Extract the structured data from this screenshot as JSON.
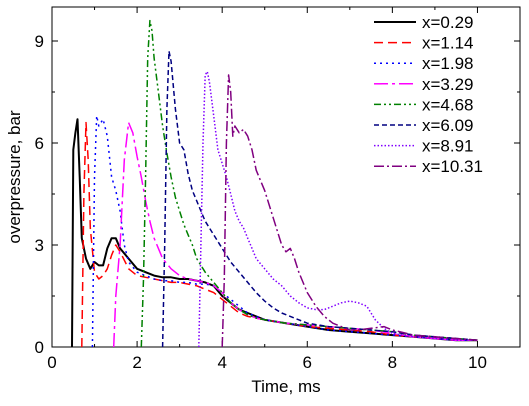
{
  "chart_data": {
    "type": "line",
    "xlabel": "Time, ms",
    "ylabel": "overpressure, bar",
    "xlim": [
      0,
      11
    ],
    "ylim": [
      0,
      10
    ],
    "x_ticks": [
      0,
      2,
      4,
      6,
      8,
      10
    ],
    "y_ticks": [
      0,
      3,
      6,
      9
    ],
    "grid": false,
    "legend_position": "top-right",
    "series": [
      {
        "name": "x=0.29",
        "color": "#000000",
        "dash": "",
        "points": [
          [
            0.47,
            0
          ],
          [
            0.5,
            5.8
          ],
          [
            0.55,
            6.3
          ],
          [
            0.6,
            6.7
          ],
          [
            0.65,
            5.0
          ],
          [
            0.7,
            3.2
          ],
          [
            0.8,
            2.6
          ],
          [
            0.9,
            2.3
          ],
          [
            1.0,
            2.5
          ],
          [
            1.1,
            2.4
          ],
          [
            1.2,
            2.4
          ],
          [
            1.3,
            2.9
          ],
          [
            1.4,
            3.2
          ],
          [
            1.5,
            3.2
          ],
          [
            1.6,
            2.9
          ],
          [
            1.8,
            2.6
          ],
          [
            2.0,
            2.3
          ],
          [
            2.2,
            2.2
          ],
          [
            2.4,
            2.1
          ],
          [
            2.6,
            2.05
          ],
          [
            2.8,
            2.05
          ],
          [
            3.0,
            2.0
          ],
          [
            3.2,
            2.0
          ],
          [
            3.4,
            1.95
          ],
          [
            3.6,
            1.9
          ],
          [
            3.8,
            1.8
          ],
          [
            4.0,
            1.5
          ],
          [
            4.2,
            1.3
          ],
          [
            4.4,
            1.1
          ],
          [
            4.6,
            1.0
          ],
          [
            4.8,
            0.9
          ],
          [
            5.0,
            0.8
          ],
          [
            5.5,
            0.7
          ],
          [
            6.0,
            0.6
          ],
          [
            6.5,
            0.5
          ],
          [
            7.0,
            0.45
          ],
          [
            7.5,
            0.4
          ],
          [
            8.0,
            0.35
          ],
          [
            8.5,
            0.3
          ],
          [
            9.0,
            0.25
          ],
          [
            9.5,
            0.2
          ],
          [
            10.0,
            0.2
          ]
        ]
      },
      {
        "name": "x=1.14",
        "color": "#ff0000",
        "dash": "9,5",
        "points": [
          [
            0.7,
            0
          ],
          [
            0.75,
            4.5
          ],
          [
            0.8,
            6.6
          ],
          [
            0.85,
            5.5
          ],
          [
            0.9,
            3.5
          ],
          [
            1.0,
            2.2
          ],
          [
            1.1,
            2.0
          ],
          [
            1.2,
            2.1
          ],
          [
            1.3,
            2.3
          ],
          [
            1.4,
            2.7
          ],
          [
            1.5,
            3.0
          ],
          [
            1.6,
            2.8
          ],
          [
            1.8,
            2.3
          ],
          [
            2.0,
            2.1
          ],
          [
            2.2,
            2.05
          ],
          [
            2.4,
            2.0
          ],
          [
            2.6,
            1.95
          ],
          [
            2.8,
            1.9
          ],
          [
            3.0,
            1.9
          ],
          [
            3.2,
            1.85
          ],
          [
            3.4,
            1.8
          ],
          [
            3.6,
            1.7
          ],
          [
            3.8,
            1.6
          ],
          [
            4.0,
            1.4
          ],
          [
            4.2,
            1.2
          ],
          [
            4.4,
            1.0
          ],
          [
            4.6,
            0.9
          ],
          [
            4.8,
            0.85
          ],
          [
            5.0,
            0.8
          ],
          [
            5.5,
            0.7
          ],
          [
            6.0,
            0.6
          ],
          [
            6.5,
            0.55
          ],
          [
            7.0,
            0.5
          ],
          [
            7.5,
            0.45
          ],
          [
            8.0,
            0.35
          ],
          [
            8.5,
            0.3
          ],
          [
            9.0,
            0.25
          ],
          [
            9.5,
            0.2
          ],
          [
            10.0,
            0.2
          ]
        ]
      },
      {
        "name": "x=1.98",
        "color": "#0000ff",
        "dash": "2,4",
        "points": [
          [
            0.95,
            0
          ],
          [
            1.0,
            5.0
          ],
          [
            1.05,
            6.8
          ],
          [
            1.1,
            6.5
          ],
          [
            1.2,
            6.7
          ],
          [
            1.3,
            6.2
          ],
          [
            1.4,
            5.0
          ],
          [
            1.5,
            4.6
          ],
          [
            1.6,
            4.0
          ],
          [
            1.7,
            3.0
          ],
          [
            1.8,
            2.5
          ],
          [
            2.0,
            2.2
          ],
          [
            2.2,
            2.1
          ],
          [
            2.4,
            2.0
          ],
          [
            2.6,
            1.95
          ],
          [
            2.8,
            1.95
          ],
          [
            3.0,
            1.9
          ],
          [
            3.2,
            1.9
          ],
          [
            3.4,
            1.85
          ],
          [
            3.6,
            1.85
          ],
          [
            3.8,
            1.8
          ],
          [
            4.0,
            1.6
          ],
          [
            4.2,
            1.4
          ],
          [
            4.4,
            1.2
          ],
          [
            4.6,
            1.0
          ],
          [
            4.8,
            0.9
          ],
          [
            5.0,
            0.8
          ],
          [
            5.5,
            0.7
          ],
          [
            6.0,
            0.6
          ],
          [
            6.5,
            0.5
          ],
          [
            7.0,
            0.45
          ],
          [
            7.5,
            0.4
          ],
          [
            8.0,
            0.35
          ],
          [
            8.5,
            0.3
          ],
          [
            9.0,
            0.25
          ],
          [
            9.5,
            0.2
          ],
          [
            10.0,
            0.2
          ]
        ]
      },
      {
        "name": "x=3.29",
        "color": "#ff00ff",
        "dash": "14,4,3,4",
        "points": [
          [
            1.45,
            0
          ],
          [
            1.5,
            1.5
          ],
          [
            1.6,
            3.0
          ],
          [
            1.7,
            5.5
          ],
          [
            1.8,
            6.6
          ],
          [
            1.9,
            6.3
          ],
          [
            2.0,
            5.6
          ],
          [
            2.1,
            5.0
          ],
          [
            2.2,
            4.3
          ],
          [
            2.3,
            3.7
          ],
          [
            2.4,
            3.2
          ],
          [
            2.5,
            2.9
          ],
          [
            2.6,
            2.6
          ],
          [
            2.8,
            2.3
          ],
          [
            3.0,
            2.1
          ],
          [
            3.2,
            2.0
          ],
          [
            3.4,
            1.95
          ],
          [
            3.6,
            1.9
          ],
          [
            3.8,
            1.8
          ],
          [
            4.0,
            1.6
          ],
          [
            4.2,
            1.3
          ],
          [
            4.4,
            1.1
          ],
          [
            4.6,
            0.95
          ],
          [
            4.8,
            0.85
          ],
          [
            5.0,
            0.8
          ],
          [
            5.5,
            0.7
          ],
          [
            6.0,
            0.65
          ],
          [
            6.5,
            0.6
          ],
          [
            7.0,
            0.55
          ],
          [
            7.5,
            0.5
          ],
          [
            8.0,
            0.4
          ],
          [
            8.5,
            0.3
          ],
          [
            9.0,
            0.25
          ],
          [
            9.5,
            0.2
          ],
          [
            10.0,
            0.2
          ]
        ]
      },
      {
        "name": "x=4.68",
        "color": "#008000",
        "dash": "7,3,2,3,2,3",
        "points": [
          [
            2.1,
            0
          ],
          [
            2.15,
            2.0
          ],
          [
            2.2,
            5.0
          ],
          [
            2.25,
            8.5
          ],
          [
            2.3,
            9.6
          ],
          [
            2.35,
            9.3
          ],
          [
            2.4,
            8.5
          ],
          [
            2.5,
            7.5
          ],
          [
            2.6,
            6.5
          ],
          [
            2.7,
            5.7
          ],
          [
            2.8,
            5.0
          ],
          [
            2.9,
            4.4
          ],
          [
            3.0,
            4.0
          ],
          [
            3.1,
            3.6
          ],
          [
            3.2,
            3.3
          ],
          [
            3.3,
            3.0
          ],
          [
            3.4,
            2.6
          ],
          [
            3.6,
            2.2
          ],
          [
            3.8,
            1.9
          ],
          [
            4.0,
            1.6
          ],
          [
            4.2,
            1.3
          ],
          [
            4.4,
            1.1
          ],
          [
            4.6,
            0.95
          ],
          [
            4.8,
            0.85
          ],
          [
            5.0,
            0.8
          ],
          [
            5.5,
            0.7
          ],
          [
            6.0,
            0.65
          ],
          [
            6.5,
            0.6
          ],
          [
            7.0,
            0.55
          ],
          [
            7.5,
            0.5
          ],
          [
            8.0,
            0.45
          ],
          [
            8.5,
            0.35
          ],
          [
            9.0,
            0.3
          ],
          [
            9.5,
            0.25
          ],
          [
            10.0,
            0.2
          ]
        ]
      },
      {
        "name": "x=6.09",
        "color": "#000080",
        "dash": "5,3",
        "points": [
          [
            2.6,
            0
          ],
          [
            2.65,
            3.0
          ],
          [
            2.7,
            7.0
          ],
          [
            2.75,
            8.7
          ],
          [
            2.8,
            8.4
          ],
          [
            2.9,
            7.0
          ],
          [
            3.0,
            6.0
          ],
          [
            3.1,
            5.8
          ],
          [
            3.2,
            5.1
          ],
          [
            3.3,
            4.6
          ],
          [
            3.4,
            4.3
          ],
          [
            3.5,
            4.0
          ],
          [
            3.6,
            3.7
          ],
          [
            3.8,
            3.3
          ],
          [
            4.0,
            2.9
          ],
          [
            4.2,
            2.5
          ],
          [
            4.4,
            2.2
          ],
          [
            4.6,
            1.9
          ],
          [
            4.8,
            1.6
          ],
          [
            5.0,
            1.35
          ],
          [
            5.2,
            1.15
          ],
          [
            5.4,
            1.0
          ],
          [
            5.6,
            0.9
          ],
          [
            5.8,
            0.8
          ],
          [
            6.0,
            0.7
          ],
          [
            6.5,
            0.6
          ],
          [
            7.0,
            0.55
          ],
          [
            7.5,
            0.5
          ],
          [
            8.0,
            0.45
          ],
          [
            8.5,
            0.35
          ],
          [
            9.0,
            0.3
          ],
          [
            9.5,
            0.25
          ],
          [
            10.0,
            0.2
          ]
        ]
      },
      {
        "name": "x=8.91",
        "color": "#8000ff",
        "dash": "1.5,2",
        "points": [
          [
            3.45,
            0
          ],
          [
            3.5,
            3.0
          ],
          [
            3.55,
            6.0
          ],
          [
            3.6,
            8.0
          ],
          [
            3.65,
            8.1
          ],
          [
            3.7,
            7.8
          ],
          [
            3.8,
            6.8
          ],
          [
            3.9,
            5.8
          ],
          [
            4.0,
            5.4
          ],
          [
            4.1,
            5.0
          ],
          [
            4.2,
            4.5
          ],
          [
            4.3,
            4.0
          ],
          [
            4.4,
            3.7
          ],
          [
            4.5,
            3.5
          ],
          [
            4.6,
            3.2
          ],
          [
            4.7,
            2.9
          ],
          [
            4.8,
            2.6
          ],
          [
            5.0,
            2.3
          ],
          [
            5.2,
            2.0
          ],
          [
            5.4,
            1.8
          ],
          [
            5.6,
            1.5
          ],
          [
            5.8,
            1.3
          ],
          [
            6.0,
            1.15
          ],
          [
            6.2,
            1.1
          ],
          [
            6.4,
            1.1
          ],
          [
            6.6,
            1.2
          ],
          [
            6.8,
            1.3
          ],
          [
            7.0,
            1.35
          ],
          [
            7.2,
            1.3
          ],
          [
            7.4,
            1.2
          ],
          [
            7.6,
            0.8
          ],
          [
            7.8,
            0.55
          ],
          [
            8.0,
            0.4
          ],
          [
            8.5,
            0.3
          ],
          [
            9.0,
            0.25
          ],
          [
            9.5,
            0.2
          ],
          [
            10.0,
            0.2
          ]
        ]
      },
      {
        "name": "x=10.31",
        "color": "#800080",
        "dash": "10,3,2,3",
        "points": [
          [
            4.0,
            0
          ],
          [
            4.05,
            2.0
          ],
          [
            4.1,
            6.0
          ],
          [
            4.15,
            8.0
          ],
          [
            4.2,
            7.5
          ],
          [
            4.25,
            6.2
          ],
          [
            4.3,
            6.5
          ],
          [
            4.4,
            6.3
          ],
          [
            4.5,
            6.4
          ],
          [
            4.6,
            6.2
          ],
          [
            4.7,
            5.8
          ],
          [
            4.8,
            5.2
          ],
          [
            5.0,
            4.6
          ],
          [
            5.2,
            3.8
          ],
          [
            5.4,
            3.0
          ],
          [
            5.5,
            2.8
          ],
          [
            5.6,
            2.9
          ],
          [
            5.7,
            2.6
          ],
          [
            5.8,
            2.2
          ],
          [
            6.0,
            1.6
          ],
          [
            6.2,
            1.2
          ],
          [
            6.4,
            0.9
          ],
          [
            6.6,
            0.7
          ],
          [
            6.8,
            0.6
          ],
          [
            7.0,
            0.5
          ],
          [
            7.2,
            0.5
          ],
          [
            7.5,
            0.55
          ],
          [
            7.8,
            0.6
          ],
          [
            8.0,
            0.5
          ],
          [
            8.5,
            0.35
          ],
          [
            9.0,
            0.3
          ],
          [
            9.5,
            0.25
          ],
          [
            10.0,
            0.2
          ]
        ]
      }
    ]
  }
}
